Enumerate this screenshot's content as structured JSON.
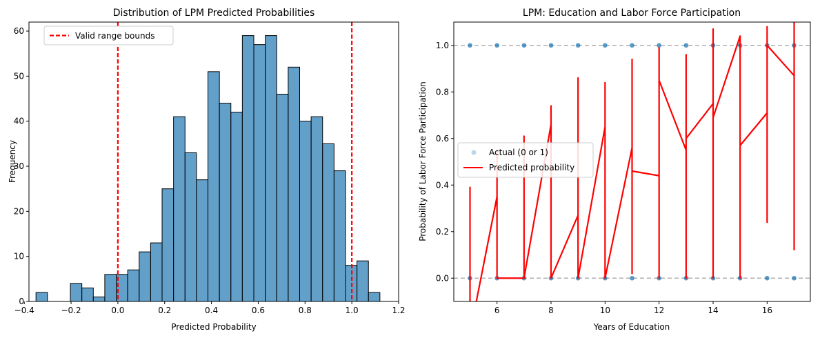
{
  "chart_data": [
    {
      "type": "bar",
      "title": "Distribution of LPM Predicted Probabilities",
      "xlabel": "Predicted Probability",
      "ylabel": "Frequency",
      "xlim": [
        -0.38,
        1.2
      ],
      "ylim": [
        0,
        62
      ],
      "xticks": [
        -0.4,
        -0.2,
        0.0,
        0.2,
        0.4,
        0.6,
        0.8,
        1.0,
        1.2
      ],
      "xtick_labels": [
        "−0.4",
        "−0.2",
        "0.0",
        "0.2",
        "0.4",
        "0.6",
        "0.8",
        "1.0",
        "1.2"
      ],
      "yticks": [
        0,
        10,
        20,
        30,
        40,
        50,
        60
      ],
      "ytick_labels": [
        "0",
        "10",
        "20",
        "30",
        "40",
        "50",
        "60"
      ],
      "bin_start": -0.35,
      "bin_width": 0.049,
      "values": [
        2,
        0,
        0,
        4,
        3,
        1,
        6,
        6,
        7,
        11,
        13,
        25,
        41,
        33,
        27,
        51,
        44,
        42,
        59,
        57,
        59,
        46,
        52,
        40,
        41,
        35,
        29,
        8,
        9,
        2
      ],
      "bar_color": "#1f77b4",
      "reference_lines": [
        0.0,
        1.0
      ],
      "reference_line_color": "#ff0000",
      "legend": {
        "position": "top-left",
        "entries": [
          "Valid range bounds"
        ]
      },
      "grid": false
    },
    {
      "type": "scatter",
      "title": "LPM: Education and Labor Force Participation",
      "xlabel": "Years of Education",
      "ylabel": "Probability of Labor Force Participation",
      "xlim": [
        4.4,
        17.6
      ],
      "ylim": [
        -0.1,
        1.1
      ],
      "xticks": [
        6,
        8,
        10,
        12,
        14,
        16
      ],
      "xtick_labels": [
        "6",
        "8",
        "10",
        "12",
        "14",
        "16"
      ],
      "yticks": [
        0.0,
        0.2,
        0.4,
        0.6,
        0.8,
        1.0
      ],
      "ytick_labels": [
        "0.0",
        "0.2",
        "0.4",
        "0.6",
        "0.8",
        "1.0"
      ],
      "reference_lines": [
        0.0,
        1.0
      ],
      "actual_points": {
        "x": [
          5,
          5,
          6,
          6,
          7,
          7,
          8,
          8,
          9,
          9,
          10,
          10,
          11,
          11,
          12,
          12,
          13,
          13,
          14,
          14,
          15,
          15,
          16,
          16,
          17,
          17
        ],
        "y": [
          1,
          0,
          1,
          0,
          1,
          0,
          1,
          0,
          1,
          0,
          1,
          0,
          1,
          0,
          1,
          0,
          1,
          0,
          1,
          0,
          1,
          0,
          1,
          0,
          1,
          0
        ]
      },
      "predicted_line": {
        "x": [
          5,
          5,
          5,
          5.2,
          6,
          6,
          6,
          7,
          7,
          7,
          8,
          8,
          8,
          8,
          9,
          9,
          9,
          9,
          10,
          10,
          10,
          10,
          11,
          11,
          11,
          11,
          12,
          12,
          12,
          12,
          12,
          13,
          13,
          13,
          13,
          14,
          14,
          14,
          14,
          15,
          15,
          15,
          15,
          16,
          16,
          16,
          16,
          17,
          17,
          17
        ],
        "y": [
          0.24,
          0.39,
          -0.1,
          -0.12,
          0.35,
          0.55,
          0.0,
          0.0,
          0.61,
          0.0,
          0.66,
          0.74,
          0.28,
          0.0,
          0.27,
          0.86,
          0.0,
          0.0,
          0.65,
          0.84,
          0.28,
          0.0,
          0.56,
          0.94,
          0.02,
          0.46,
          0.44,
          0.99,
          0.0,
          0.87,
          0.85,
          0.55,
          0.96,
          0.0,
          0.6,
          0.75,
          1.07,
          0.0,
          0.69,
          1.04,
          0.0,
          0.57,
          0.57,
          0.71,
          1.08,
          0.24,
          1.0,
          0.87,
          1.12,
          0.12
        ]
      },
      "legend": {
        "position": "center-left",
        "entries": [
          "Actual (0 or 1)",
          "Predicted probability"
        ]
      },
      "colors": {
        "points": "#1f77b4",
        "line": "#ff0000",
        "reference": "#b0b0b0"
      },
      "grid": false
    }
  ]
}
